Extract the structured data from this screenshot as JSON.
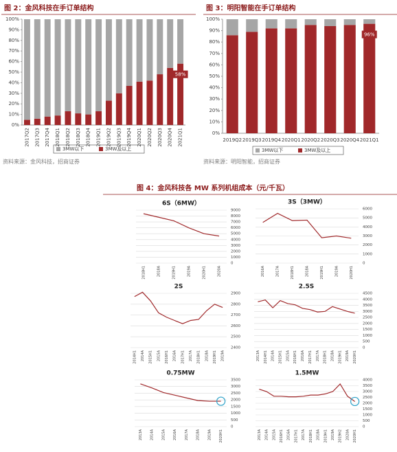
{
  "figure4_title": "图 4：金风科技各 MW 系列机组成本（元/千瓦）",
  "chart_data": [
    {
      "type": "bar",
      "stacked": true,
      "title": "图 2：金风科技在手订单结构",
      "source": "资料来源：金风科技，招商证券",
      "categories": [
        "2017Q2",
        "2017Q3",
        "2017Q4",
        "2018Q1",
        "2018Q2",
        "2018Q3",
        "2018Q4",
        "2019Q1",
        "2019Q2",
        "2019Q3",
        "2019Q4",
        "2020Q1",
        "2020Q2",
        "2020Q3",
        "2020Q4",
        "2021Q1"
      ],
      "series": [
        {
          "name": "3MW以下",
          "color": "#a6a6a6",
          "values": [
            95,
            94,
            92,
            91,
            87,
            89,
            90,
            87,
            77,
            70,
            63,
            59,
            58,
            52,
            46,
            42
          ]
        },
        {
          "name": "3MW及以上",
          "color": "#a0282a",
          "values": [
            5,
            6,
            8,
            9,
            13,
            11,
            10,
            13,
            23,
            30,
            37,
            41,
            42,
            48,
            54,
            58
          ],
          "value_labels": [
            null,
            null,
            null,
            null,
            null,
            null,
            null,
            null,
            null,
            null,
            null,
            null,
            null,
            null,
            null,
            "58%"
          ]
        }
      ],
      "ylim": [
        0,
        100
      ],
      "yticks": [
        {
          "value": 0,
          "label": "0%"
        },
        {
          "value": 10,
          "label": "10%"
        },
        {
          "value": 20,
          "label": "20%"
        },
        {
          "value": 30,
          "label": "30%"
        },
        {
          "value": 40,
          "label": "40%"
        },
        {
          "value": 50,
          "label": "50%"
        },
        {
          "value": 60,
          "label": "60%"
        },
        {
          "value": 70,
          "label": "70%"
        },
        {
          "value": 80,
          "label": "80%"
        },
        {
          "value": 90,
          "label": "90%"
        },
        {
          "value": 100,
          "label": "100%"
        }
      ]
    },
    {
      "type": "bar",
      "stacked": true,
      "title": "图 3：明阳智能在手订单结构",
      "source": "资料来源：明阳智能，招商证券",
      "categories": [
        "2019Q2",
        "2019Q3",
        "2019Q4",
        "2020Q1",
        "2020Q2",
        "2020Q3",
        "2020Q4",
        "2021Q1"
      ],
      "series": [
        {
          "name": "3MW以下",
          "color": "#a6a6a6",
          "values": [
            14,
            11,
            8,
            8,
            5,
            6,
            5,
            4
          ]
        },
        {
          "name": "3MW及以上",
          "color": "#a0282a",
          "values": [
            86,
            89,
            92,
            92,
            95,
            94,
            95,
            96
          ],
          "value_labels": [
            null,
            null,
            null,
            null,
            null,
            null,
            null,
            "96%"
          ]
        }
      ],
      "ylim": [
        0,
        100
      ],
      "yticks": [
        {
          "value": 0,
          "label": "0%"
        },
        {
          "value": 10,
          "label": "10%"
        },
        {
          "value": 20,
          "label": "20%"
        },
        {
          "value": 30,
          "label": "30%"
        },
        {
          "value": 40,
          "label": "40%"
        },
        {
          "value": 50,
          "label": "50%"
        },
        {
          "value": 60,
          "label": "60%"
        },
        {
          "value": 70,
          "label": "70%"
        },
        {
          "value": 80,
          "label": "80%"
        },
        {
          "value": 90,
          "label": "90%"
        },
        {
          "value": 100,
          "label": "100%"
        }
      ]
    },
    {
      "type": "line",
      "title": "6S（6MW）",
      "categories": [
        "2018H1",
        "2018A",
        "2019H1",
        "2019A",
        "2020H1",
        "2020A"
      ],
      "values": [
        8400,
        7800,
        7200,
        6000,
        5000,
        4600
      ],
      "color": "#a0282a",
      "grid": true,
      "ylim": [
        0,
        9000
      ],
      "yticks": [
        0,
        1000,
        2000,
        3000,
        4000,
        5000,
        6000,
        7000,
        8000,
        9000
      ]
    },
    {
      "type": "line",
      "title": "3S（3MW）",
      "categories": [
        "2016A",
        "2017A",
        "2018H1",
        "2018A",
        "2019H1",
        "2019A",
        "2020H1"
      ],
      "values": [
        4500,
        5500,
        4700,
        4750,
        2800,
        3000,
        2750
      ],
      "color": "#a0282a",
      "grid": true,
      "ylim": [
        0,
        6000
      ],
      "yticks": [
        0,
        1000,
        2000,
        3000,
        4000,
        5000,
        6000
      ]
    },
    {
      "type": "line",
      "title": "2S",
      "categories": [
        "2014H1",
        "2014A",
        "2015H1",
        "2015A",
        "2016H1",
        "2016A",
        "2017H1",
        "2017A",
        "2018H1",
        "2018A",
        "2019H1",
        "2019A"
      ],
      "values": [
        2870,
        2910,
        2830,
        2720,
        2680,
        2650,
        2620,
        2650,
        2660,
        2740,
        2800,
        2770
      ],
      "color": "#a0282a",
      "grid": true,
      "ylim": [
        2400,
        2900
      ],
      "yticks": [
        2400,
        2500,
        2600,
        2700,
        2800,
        2900
      ]
    },
    {
      "type": "line",
      "title": "2.5S",
      "categories": [
        "2013A",
        "2014H1",
        "2014A",
        "2015H1",
        "2015A",
        "2016H1",
        "2016A",
        "2017H1",
        "2017A",
        "2018H1",
        "2018A",
        "2019H1",
        "2019A",
        "2020H1"
      ],
      "values": [
        3800,
        3950,
        3300,
        3900,
        3650,
        3550,
        3250,
        3150,
        2950,
        3000,
        3400,
        3200,
        3000,
        2850
      ],
      "color": "#a0282a",
      "grid": true,
      "ylim": [
        0,
        4500
      ],
      "yticks": [
        0,
        500,
        1000,
        1500,
        2000,
        2500,
        3000,
        3500,
        4000,
        4500
      ]
    },
    {
      "type": "line",
      "title": "0.75MW",
      "categories": [
        "2013A",
        "2014A",
        "2015A",
        "2016A",
        "2017A",
        "2018A",
        "2019A",
        "2020H1"
      ],
      "values": [
        3200,
        2900,
        2550,
        2350,
        2150,
        1950,
        1900,
        1900
      ],
      "color": "#a0282a",
      "grid": true,
      "ylim": [
        0,
        3500
      ],
      "yticks": [
        0,
        500,
        1000,
        1500,
        2000,
        2500,
        3000,
        3500
      ]
    },
    {
      "type": "line",
      "title": "1.5MW",
      "categories": [
        "2013A",
        "2014A",
        "2015A",
        "2016H1",
        "2016A",
        "2017H1",
        "2017A",
        "2018H1",
        "2018A",
        "2019H1",
        "2019A",
        "2019H2",
        "2020A",
        "2020H1"
      ],
      "values": [
        3200,
        3000,
        2600,
        2600,
        2550,
        2550,
        2600,
        2700,
        2700,
        2800,
        3000,
        3650,
        2600,
        2150
      ],
      "color": "#a0282a",
      "grid": true,
      "ylim": [
        0,
        4000
      ],
      "yticks": [
        0,
        500,
        1000,
        1500,
        2000,
        2500,
        3000,
        3500,
        4000
      ]
    }
  ]
}
